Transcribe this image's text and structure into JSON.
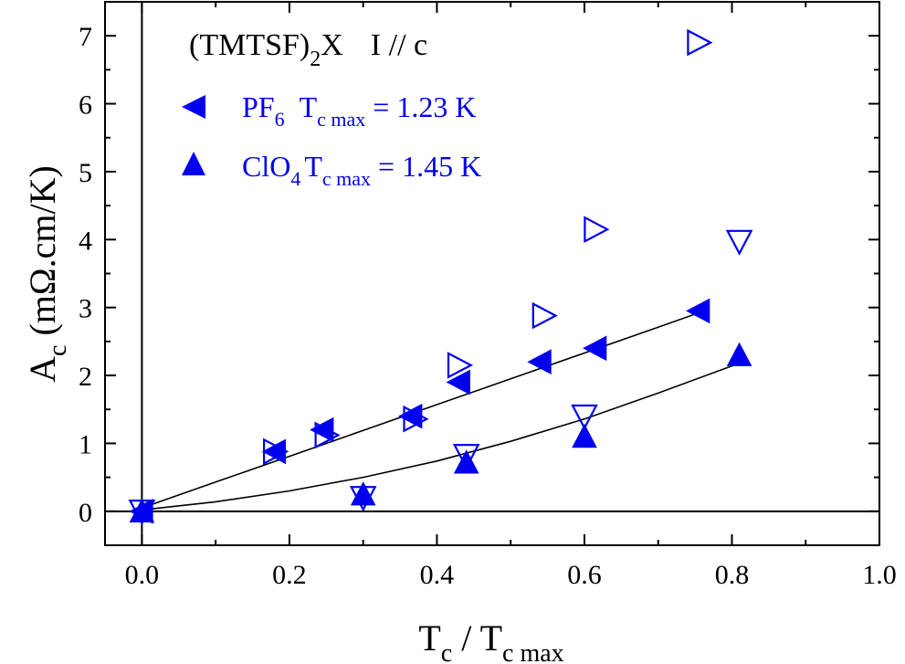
{
  "chart_data": {
    "type": "scatter",
    "title": "",
    "annotation": {
      "prefix": "(TMTSF)",
      "subscript": "2",
      "suffix": "X",
      "current": "I // c"
    },
    "xlabel": {
      "base": "T",
      "sub": "c",
      "sep": " / ",
      "base2": "T",
      "sub2": "c max"
    },
    "ylabel": {
      "base": "A",
      "sub": "c",
      "rest": " (mΩ.cm/K)"
    },
    "xlim": [
      -0.05,
      1.0
    ],
    "ylim": [
      -0.5,
      7.5
    ],
    "xticks": [
      "0.0",
      "0.2",
      "0.4",
      "0.6",
      "0.8",
      "1.0"
    ],
    "xtick_values": [
      0.0,
      0.2,
      0.4,
      0.6,
      0.8,
      1.0
    ],
    "yticks": [
      "0",
      "1",
      "2",
      "3",
      "4",
      "5",
      "6",
      "7"
    ],
    "ytick_values": [
      0,
      1,
      2,
      3,
      4,
      5,
      6,
      7
    ],
    "grid": false,
    "legend_position": "top-left",
    "colors": {
      "series": "#0000ee",
      "axis": "#000000",
      "fit": "#000000"
    },
    "legend": [
      {
        "marker": "triangle-left-filled",
        "name": "PF",
        "name_sub": "6",
        "tc": "T",
        "tc_sub": "c max",
        "value": " = 1.23 K"
      },
      {
        "marker": "triangle-up-filled",
        "name": "ClO",
        "name_sub": "4",
        "tc": "T",
        "tc_sub": "c max",
        "value": " = 1.45 K"
      }
    ],
    "series": [
      {
        "name": "PF6",
        "marker": "triangle-left-filled",
        "points": [
          [
            0.0,
            0.0
          ],
          [
            0.18,
            0.88
          ],
          [
            0.245,
            1.2
          ],
          [
            0.365,
            1.4
          ],
          [
            0.43,
            1.9
          ],
          [
            0.54,
            2.2
          ],
          [
            0.615,
            2.4
          ],
          [
            0.755,
            2.95
          ]
        ]
      },
      {
        "name": "PF6 open",
        "marker": "triangle-right-open",
        "points": [
          [
            0.18,
            0.88
          ],
          [
            0.25,
            1.12
          ],
          [
            0.37,
            1.36
          ],
          [
            0.43,
            2.15
          ],
          [
            0.545,
            2.88
          ],
          [
            0.615,
            4.15
          ],
          [
            0.755,
            6.9
          ]
        ]
      },
      {
        "name": "ClO4",
        "marker": "triangle-up-filled",
        "points": [
          [
            0.0,
            0.0
          ],
          [
            0.3,
            0.25
          ],
          [
            0.44,
            0.72
          ],
          [
            0.6,
            1.1
          ],
          [
            0.81,
            2.3
          ]
        ]
      },
      {
        "name": "ClO4 open",
        "marker": "triangle-down-open",
        "points": [
          [
            0.0,
            0.0
          ],
          [
            0.3,
            0.2
          ],
          [
            0.44,
            0.82
          ],
          [
            0.6,
            1.4
          ],
          [
            0.81,
            3.97
          ]
        ]
      }
    ],
    "fits": [
      {
        "name": "PF6 fit",
        "x": [
          0.0,
          0.1,
          0.2,
          0.3,
          0.4,
          0.5,
          0.6,
          0.7,
          0.76
        ],
        "y": [
          0.05,
          0.43,
          0.81,
          1.19,
          1.57,
          1.95,
          2.33,
          2.71,
          2.94
        ]
      },
      {
        "name": "ClO4 fit",
        "x": [
          0.0,
          0.1,
          0.2,
          0.3,
          0.4,
          0.5,
          0.6,
          0.7,
          0.82
        ],
        "y": [
          0.02,
          0.14,
          0.3,
          0.5,
          0.74,
          1.03,
          1.36,
          1.74,
          2.22
        ]
      }
    ]
  }
}
